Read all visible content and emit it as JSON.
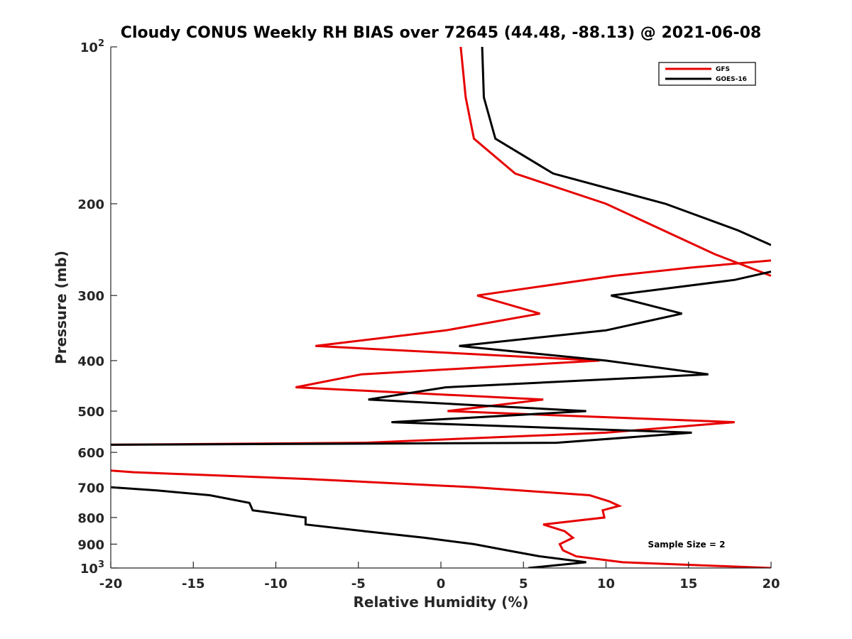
{
  "chart_data": {
    "type": "line",
    "title": "Cloudy CONUS Weekly RH BIAS over 72645 (44.48, -88.13) @ 2021-06-08",
    "xlabel": "Relative Humidity (%)",
    "ylabel": "Pressure (mb)",
    "xlim": [
      -20,
      20
    ],
    "ylim": [
      100,
      1000
    ],
    "yscale": "log",
    "y_reversed": true,
    "grid": false,
    "legend_location": "top-right",
    "annotation": "Sample Size = 2",
    "x_ticks": [
      "-20",
      "-15",
      "-10",
      "-5",
      "0",
      "5",
      "10",
      "15",
      "20"
    ],
    "y_ticks": [
      {
        "value": 100,
        "base": "10",
        "exp": "2"
      },
      {
        "value": 200,
        "label": "200"
      },
      {
        "value": 300,
        "label": "300"
      },
      {
        "value": 400,
        "label": "400"
      },
      {
        "value": 500,
        "label": "500"
      },
      {
        "value": 600,
        "label": "600"
      },
      {
        "value": 700,
        "label": "700"
      },
      {
        "value": 800,
        "label": "800"
      },
      {
        "value": 900,
        "label": "900"
      },
      {
        "value": 1000,
        "base": "10",
        "exp": "3"
      }
    ],
    "series": [
      {
        "name": "GFS",
        "color": "#e60000",
        "segments": [
          [
            [
              1.2,
              100
            ],
            [
              1.5,
              125
            ],
            [
              2.0,
              150
            ],
            [
              4.5,
              175
            ],
            [
              10.0,
              200
            ],
            [
              16.6,
              250
            ],
            [
              20.0,
              275
            ]
          ],
          [
            [
              20.0,
              257
            ],
            [
              15.2,
              265
            ],
            [
              10.5,
              275
            ],
            [
              2.2,
              300
            ],
            [
              6.0,
              325
            ],
            [
              0.3,
              350
            ],
            [
              -7.6,
              375
            ],
            [
              9.6,
              400
            ],
            [
              -4.8,
              425
            ],
            [
              -8.8,
              450
            ],
            [
              6.2,
              475
            ],
            [
              0.4,
              500
            ],
            [
              17.8,
              525
            ],
            [
              10.0,
              550
            ],
            [
              -4.6,
              575
            ],
            [
              -20.0,
              580
            ]
          ],
          [
            [
              -20.0,
              650
            ],
            [
              -18.6,
              655
            ],
            [
              -8.0,
              675
            ],
            [
              2.0,
              700
            ],
            [
              9.0,
              725
            ],
            [
              10.2,
              745
            ],
            [
              10.8,
              760
            ],
            [
              9.8,
              775
            ],
            [
              9.9,
              800
            ],
            [
              6.2,
              825
            ],
            [
              7.5,
              850
            ],
            [
              8.0,
              875
            ],
            [
              7.2,
              900
            ],
            [
              7.4,
              925
            ],
            [
              8.2,
              950
            ],
            [
              11.0,
              975
            ],
            [
              20.0,
              1000
            ]
          ]
        ]
      },
      {
        "name": "GOES-16",
        "color": "#000000",
        "segments": [
          [
            [
              2.5,
              100
            ],
            [
              2.6,
              125
            ],
            [
              3.3,
              150
            ],
            [
              6.8,
              175
            ],
            [
              13.6,
              200
            ],
            [
              18.0,
              225
            ],
            [
              20.0,
              240
            ]
          ],
          [
            [
              20.0,
              270
            ],
            [
              17.8,
              280
            ],
            [
              10.3,
              300
            ],
            [
              14.6,
              325
            ],
            [
              10.0,
              350
            ],
            [
              1.1,
              375
            ],
            [
              10.0,
              400
            ],
            [
              16.2,
              425
            ],
            [
              0.3,
              450
            ],
            [
              -4.4,
              475
            ],
            [
              8.8,
              500
            ],
            [
              -3.0,
              525
            ],
            [
              15.2,
              550
            ],
            [
              7.0,
              575
            ],
            [
              -20.0,
              580
            ]
          ],
          [
            [
              -20.0,
              700
            ],
            [
              -17.2,
              710
            ],
            [
              -14.0,
              725
            ],
            [
              -11.6,
              750
            ],
            [
              -11.4,
              775
            ],
            [
              -8.2,
              800
            ],
            [
              -8.2,
              825
            ],
            [
              -4.6,
              850
            ],
            [
              -1.0,
              875
            ],
            [
              2.0,
              900
            ],
            [
              4.0,
              925
            ],
            [
              6.0,
              950
            ],
            [
              8.8,
              975
            ],
            [
              5.3,
              1000
            ]
          ]
        ]
      }
    ]
  }
}
